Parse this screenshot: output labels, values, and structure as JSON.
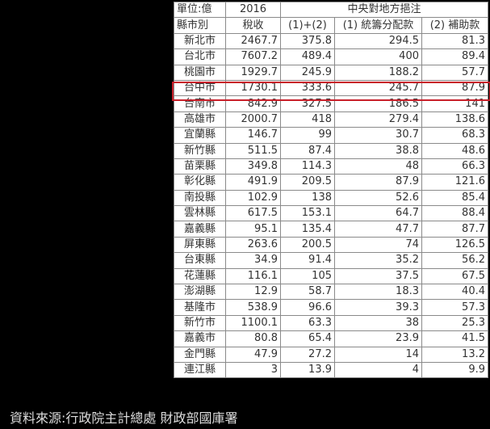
{
  "header": {
    "unit": "單位:億",
    "year": "2016",
    "group": "中央對地方挹注",
    "col_region": "縣市別",
    "col_tax": "稅收",
    "col_sum": "(1)+(2)",
    "col_alloc": "(1) 統籌分配款",
    "col_subsidy": "(2) 補助款"
  },
  "highlight_row": "台中市",
  "highlight_color": "#c8202a",
  "rows": [
    [
      "新北市",
      "2467.7",
      "375.8",
      "294.5",
      "81.3"
    ],
    [
      "台北市",
      "7607.2",
      "489.4",
      "400",
      "89.4"
    ],
    [
      "桃園市",
      "1929.7",
      "245.9",
      "188.2",
      "57.7"
    ],
    [
      "台中市",
      "1730.1",
      "333.6",
      "245.7",
      "87.9"
    ],
    [
      "台南市",
      "842.9",
      "327.5",
      "186.5",
      "141"
    ],
    [
      "高雄市",
      "2000.7",
      "418",
      "279.4",
      "138.6"
    ],
    [
      "宜蘭縣",
      "146.7",
      "99",
      "30.7",
      "68.3"
    ],
    [
      "新竹縣",
      "511.5",
      "87.4",
      "38.8",
      "48.6"
    ],
    [
      "苗栗縣",
      "349.8",
      "114.3",
      "48",
      "66.3"
    ],
    [
      "彰化縣",
      "491.9",
      "209.5",
      "87.9",
      "121.6"
    ],
    [
      "南投縣",
      "102.9",
      "138",
      "52.6",
      "85.4"
    ],
    [
      "雲林縣",
      "617.5",
      "153.1",
      "64.7",
      "88.4"
    ],
    [
      "嘉義縣",
      "95.1",
      "135.4",
      "47.7",
      "87.7"
    ],
    [
      "屏東縣",
      "263.6",
      "200.5",
      "74",
      "126.5"
    ],
    [
      "台東縣",
      "34.9",
      "91.4",
      "35.2",
      "56.2"
    ],
    [
      "花蓮縣",
      "116.1",
      "105",
      "37.5",
      "67.5"
    ],
    [
      "澎湖縣",
      "12.9",
      "58.7",
      "18.3",
      "40.4"
    ],
    [
      "基隆市",
      "538.9",
      "96.6",
      "39.3",
      "57.3"
    ],
    [
      "新竹市",
      "1100.1",
      "63.3",
      "38",
      "25.3"
    ],
    [
      "嘉義市",
      "80.8",
      "65.4",
      "23.9",
      "41.5"
    ],
    [
      "金門縣",
      "47.9",
      "27.2",
      "14",
      "13.2"
    ],
    [
      "連江縣",
      "3",
      "13.9",
      "4",
      "9.9"
    ]
  ],
  "source": "資料來源:行政院主計總處  財政部國庫署"
}
